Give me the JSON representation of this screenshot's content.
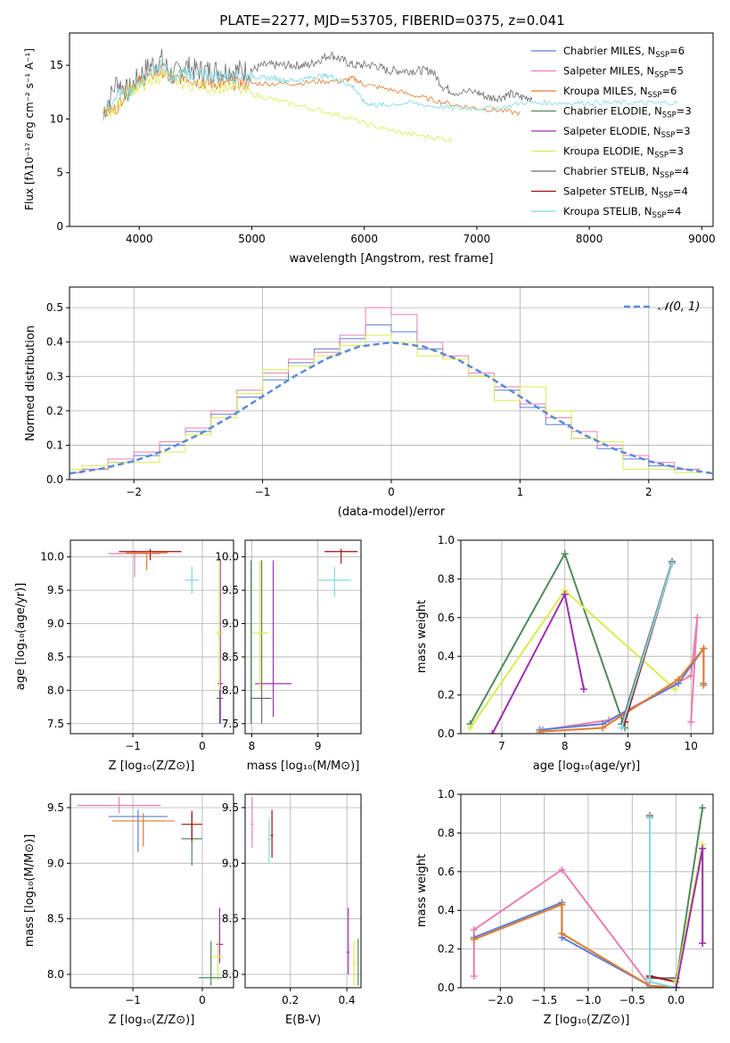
{
  "figure_title": "PLATE=2277, MJD=53705, FIBERID=0375, z=0.041",
  "colors": {
    "Chabrier MILES": "#5b7fd6",
    "Salpeter MILES": "#e97fb3",
    "Kroupa MILES": "#e07b2d",
    "Chabrier ELODIE": "#4f8a5b",
    "Salpeter ELODIE": "#9b30b0",
    "Kroupa ELODIE": "#d9ec4f",
    "Chabrier STELIB": "#6e6e6e",
    "Salpeter STELIB": "#a01010",
    "Kroupa STELIB": "#7fd8e0"
  },
  "chart_data": [
    {
      "id": "spectrum",
      "type": "line",
      "title": "PLATE=2277, MJD=53705, FIBERID=0375, z=0.041",
      "xlabel": "wavelength [Angstrom, rest frame]",
      "ylabel": "Flux [fλ10⁻¹⁷ erg cm⁻² s⁻¹ A⁻¹]",
      "xlim": [
        3380,
        9100
      ],
      "ylim": [
        0,
        18
      ],
      "xticks": [
        4000,
        5000,
        6000,
        7000,
        8000,
        9000
      ],
      "yticks": [
        0,
        5,
        10,
        15
      ],
      "grid": false,
      "legend_position": "upper right",
      "legend": [
        "Chabrier MILES, N_SSP=6",
        "Salpeter MILES, N_SSP=5",
        "Kroupa MILES, N_SSP=6",
        "Chabrier ELODIE, N_SSP=3",
        "Salpeter ELODIE, N_SSP=3",
        "Kroupa ELODIE, N_SSP=3",
        "Chabrier STELIB, N_SSP=4",
        "Salpeter STELIB, N_SSP=4",
        "Kroupa STELIB, N_SSP=4"
      ],
      "series": [
        {
          "name": "Chabrier STELIB, N_SSP=4",
          "x": [
            3680,
            3800,
            3900,
            4000,
            4100,
            4200,
            4300,
            4400,
            4500,
            4600,
            4700,
            4800,
            4900,
            5000,
            5100,
            5200,
            5300,
            5400,
            5500,
            5600,
            5700,
            5800,
            5900,
            6000,
            6100,
            6200,
            6300,
            6400,
            6500,
            6600,
            6700,
            6800,
            7000,
            7100,
            7200,
            7300,
            7400,
            7500
          ],
          "y": [
            10.5,
            13.5,
            12.5,
            14,
            15,
            15.5,
            14,
            15,
            14.5,
            14.5,
            14.5,
            14.5,
            14.5,
            14.5,
            15,
            15,
            15,
            15,
            15,
            15.5,
            16,
            15.5,
            15,
            15,
            15,
            14.5,
            14.5,
            14.5,
            14.5,
            14.5,
            13,
            12.5,
            12.5,
            12,
            12,
            12.3,
            12,
            12
          ]
        },
        {
          "name": "Kroupa MILES, N_SSP=6",
          "x": [
            3680,
            3800,
            3900,
            4000,
            4100,
            4200,
            4300,
            4400,
            4500,
            4600,
            4700,
            4800,
            4900,
            5000,
            5200,
            5400,
            5600,
            5800,
            5900,
            6000,
            6200,
            6400,
            6600,
            6800,
            7000,
            7200,
            7400
          ],
          "y": [
            10.5,
            11,
            13,
            13.5,
            14,
            14.5,
            13.5,
            14,
            13.5,
            13.3,
            13.3,
            13.3,
            13.3,
            13.3,
            13.3,
            13.3,
            13.5,
            13.5,
            13.8,
            13.2,
            12.8,
            12.3,
            11.8,
            11.3,
            11,
            10.8,
            10.5
          ]
        },
        {
          "name": "Kroupa ELODIE, N_SSP=3",
          "x": [
            3700,
            3800,
            3900,
            4000,
            4100,
            4200,
            4400,
            4600,
            4800,
            5000,
            5200,
            5400,
            5600,
            5800,
            6000,
            6200,
            6400,
            6600,
            6800
          ],
          "y": [
            10.5,
            11,
            12.5,
            13,
            13.5,
            14,
            13.3,
            13,
            13,
            12.3,
            11.8,
            11.3,
            10.8,
            10.3,
            9.6,
            9,
            8.6,
            8.3,
            8
          ]
        },
        {
          "name": "Kroupa STELIB, N_SSP=4",
          "x": [
            3680,
            3800,
            3900,
            4000,
            4100,
            4200,
            4300,
            4400,
            4500,
            4600,
            4700,
            4800,
            4900,
            5000,
            5100,
            5200,
            5300,
            5400,
            5500,
            5600,
            5700,
            5800,
            5900,
            6000,
            6100,
            6200,
            6400,
            6600,
            6800,
            7000,
            7200,
            7400,
            7600,
            7800,
            8000,
            8200,
            8400,
            8600,
            8800
          ],
          "y": [
            10.5,
            12.5,
            12,
            13.5,
            14.5,
            15,
            13.5,
            14.5,
            14,
            14,
            14,
            14,
            14,
            14,
            13.8,
            13.8,
            13.6,
            13.6,
            13.8,
            14,
            14,
            13.5,
            13,
            11.5,
            11.3,
            11.3,
            11.5,
            11.2,
            11,
            11,
            11,
            11.5,
            11.5,
            11.5,
            11.5,
            11.5,
            11.5,
            11.5,
            11.5
          ]
        }
      ]
    },
    {
      "id": "residuals",
      "type": "line",
      "xlabel": "(data-model)/error",
      "ylabel": "Normed distribution",
      "xlim": [
        -2.5,
        2.5
      ],
      "ylim": [
        0,
        0.56
      ],
      "xticks": [
        -2,
        -1,
        0,
        1,
        2
      ],
      "yticks": [
        0.0,
        0.1,
        0.2,
        0.3,
        0.4,
        0.5
      ],
      "grid": true,
      "legend_position": "upper right",
      "legend": [
        "𝒩(0, 1)"
      ],
      "series": [
        {
          "name": "𝒩(0, 1)",
          "x": [
            -2.5,
            -2.25,
            -2.0,
            -1.75,
            -1.5,
            -1.25,
            -1.0,
            -0.75,
            -0.5,
            -0.25,
            0.0,
            0.25,
            0.5,
            0.75,
            1.0,
            1.25,
            1.5,
            1.75,
            2.0,
            2.25,
            2.5
          ],
          "y": [
            0.018,
            0.032,
            0.054,
            0.086,
            0.13,
            0.183,
            0.242,
            0.301,
            0.352,
            0.387,
            0.399,
            0.387,
            0.352,
            0.301,
            0.242,
            0.183,
            0.13,
            0.086,
            0.054,
            0.032,
            0.018
          ]
        },
        {
          "name": "Chabrier MILES, N_SSP=6",
          "x": [
            -2.5,
            -2.3,
            -2.1,
            -1.9,
            -1.7,
            -1.5,
            -1.3,
            -1.1,
            -0.9,
            -0.7,
            -0.5,
            -0.3,
            -0.1,
            0.1,
            0.3,
            0.5,
            0.7,
            0.9,
            1.1,
            1.3,
            1.5,
            1.7,
            1.9,
            2.1,
            2.3
          ],
          "y": [
            0.02,
            0.03,
            0.05,
            0.07,
            0.1,
            0.14,
            0.19,
            0.24,
            0.29,
            0.34,
            0.38,
            0.41,
            0.45,
            0.43,
            0.38,
            0.35,
            0.3,
            0.26,
            0.21,
            0.16,
            0.12,
            0.09,
            0.06,
            0.04,
            0.03
          ]
        },
        {
          "name": "Salpeter MILES, N_SSP=5",
          "x": [
            -2.5,
            -2.3,
            -2.1,
            -1.9,
            -1.7,
            -1.5,
            -1.3,
            -1.1,
            -0.9,
            -0.7,
            -0.5,
            -0.3,
            -0.1,
            0.1,
            0.3,
            0.5,
            0.7,
            0.9,
            1.1,
            1.3,
            1.5,
            1.7,
            1.9,
            2.1,
            2.3
          ],
          "y": [
            0.02,
            0.03,
            0.06,
            0.08,
            0.11,
            0.15,
            0.2,
            0.26,
            0.31,
            0.35,
            0.37,
            0.42,
            0.5,
            0.48,
            0.4,
            0.36,
            0.31,
            0.27,
            0.22,
            0.18,
            0.14,
            0.1,
            0.07,
            0.05,
            0.03
          ]
        },
        {
          "name": "Kroupa ELODIE, N_SSP=3",
          "x": [
            -2.5,
            -2.3,
            -2.1,
            -1.9,
            -1.7,
            -1.5,
            -1.3,
            -1.1,
            -0.9,
            -0.7,
            -0.5,
            -0.3,
            -0.1,
            0.1,
            0.3,
            0.5,
            0.7,
            0.9,
            1.1,
            1.3,
            1.5,
            1.7,
            1.9,
            2.1,
            2.3
          ],
          "y": [
            0.03,
            0.04,
            0.05,
            0.05,
            0.08,
            0.13,
            0.18,
            0.25,
            0.32,
            0.33,
            0.36,
            0.39,
            0.42,
            0.4,
            0.36,
            0.35,
            0.3,
            0.23,
            0.27,
            0.2,
            0.12,
            0.11,
            0.03,
            0.03,
            0.02
          ]
        }
      ]
    },
    {
      "id": "age_vs_z",
      "type": "scatter",
      "xlabel": "Z [log₁₀(Z/Z⊙)]",
      "ylabel": "age  [log₁₀(age/yr)]",
      "xlim": [
        -1.9,
        0.45
      ],
      "ylim": [
        7.35,
        10.25
      ],
      "xticks": [
        -1,
        0
      ],
      "yticks": [
        7.5,
        8.0,
        8.5,
        9.0,
        9.5,
        10.0
      ],
      "grid": true
    },
    {
      "id": "age_vs_mass",
      "type": "scatter",
      "xlabel": "mass [log₁₀(M/M⊙)]",
      "ylabel": "",
      "xlim": [
        7.9,
        9.65
      ],
      "ylim": [
        7.35,
        10.25
      ],
      "xticks": [
        8,
        9
      ],
      "yticks": [
        7.5,
        8.0,
        8.5,
        9.0,
        9.5,
        10.0
      ],
      "grid": true
    },
    {
      "id": "weight_vs_age",
      "type": "line",
      "xlabel": "age  [log₁₀(age/yr)]",
      "ylabel": "mass weight",
      "xlim": [
        6.35,
        10.35
      ],
      "ylim": [
        0,
        1
      ],
      "xticks": [
        7,
        8,
        9,
        10
      ],
      "yticks": [
        0.0,
        0.2,
        0.4,
        0.6,
        0.8,
        1.0
      ],
      "grid": true,
      "series": [
        {
          "name": "Chabrier ELODIE, N_SSP=3",
          "x": [
            6.5,
            8.0,
            8.95
          ],
          "y": [
            0.05,
            0.93,
            0.03
          ]
        },
        {
          "name": "Kroupa ELODIE, N_SSP=3",
          "x": [
            6.5,
            8.0,
            9.75
          ],
          "y": [
            0.03,
            0.74,
            0.23
          ]
        },
        {
          "name": "Salpeter ELODIE, N_SSP=3",
          "x": [
            6.85,
            8.0,
            8.3
          ],
          "y": [
            0.0,
            0.72,
            0.23
          ]
        },
        {
          "name": "Salpeter MILES, N_SSP=5",
          "x": [
            7.65,
            8.7,
            10.0,
            10.1,
            10.0
          ],
          "y": [
            0.02,
            0.07,
            0.3,
            0.6,
            0.06
          ]
        },
        {
          "name": "Chabrier MILES, N_SSP=6",
          "x": [
            7.6,
            8.6,
            9.8,
            10.2,
            10.2
          ],
          "y": [
            0.02,
            0.05,
            0.26,
            0.44,
            0.26
          ]
        },
        {
          "name": "Kroupa MILES, N_SSP=6",
          "x": [
            7.6,
            8.6,
            9.8,
            10.2,
            10.2
          ],
          "y": [
            0.01,
            0.03,
            0.28,
            0.44,
            0.25
          ]
        },
        {
          "name": "Chabrier STELIB, N_SSP=4",
          "x": [
            8.9,
            9.7
          ],
          "y": [
            0.05,
            0.89
          ]
        },
        {
          "name": "Salpeter STELIB, N_SSP=4",
          "x": [
            8.95,
            9.7
          ],
          "y": [
            0.06,
            0.88
          ]
        },
        {
          "name": "Kroupa STELIB, N_SSP=4",
          "x": [
            8.9,
            9.7
          ],
          "y": [
            0.03,
            0.88
          ]
        }
      ]
    },
    {
      "id": "mass_vs_z",
      "type": "scatter",
      "xlabel": "Z [log₁₀(Z/Z⊙)]",
      "ylabel": "mass [log₁₀(M/M⊙)]",
      "xlim": [
        -1.9,
        0.45
      ],
      "ylim": [
        7.88,
        9.62
      ],
      "xticks": [
        -1,
        0
      ],
      "yticks": [
        8.0,
        8.5,
        9.0,
        9.5
      ],
      "grid": true
    },
    {
      "id": "mass_vs_ebv",
      "type": "scatter",
      "xlabel": "E(B-V)",
      "ylabel": "",
      "xlim": [
        0.04,
        0.45
      ],
      "ylim": [
        7.88,
        9.62
      ],
      "xticks": [
        0.2,
        0.4
      ],
      "yticks": [
        8.0,
        8.5,
        9.0,
        9.5
      ],
      "grid": true
    },
    {
      "id": "weight_vs_z",
      "type": "line",
      "xlabel": "Z [log₁₀(Z/Z⊙)]",
      "ylabel": "mass weight",
      "xlim": [
        -2.45,
        0.42
      ],
      "ylim": [
        0,
        1
      ],
      "xticks": [
        -2.0,
        -1.5,
        -1.0,
        -0.5,
        0.0
      ],
      "yticks": [
        0.0,
        0.2,
        0.4,
        0.6,
        0.8,
        1.0
      ],
      "grid": true,
      "series": [
        {
          "name": "Salpeter MILES, N_SSP=5",
          "x": [
            -2.3,
            -2.3,
            -1.3,
            -0.3,
            0.0
          ],
          "y": [
            0.06,
            0.3,
            0.61,
            0.01,
            0.0
          ]
        },
        {
          "name": "Chabrier MILES, N_SSP=6",
          "x": [
            -2.3,
            -1.3,
            -1.3,
            -0.3,
            0.0
          ],
          "y": [
            0.26,
            0.44,
            0.26,
            0.01,
            0.0
          ]
        },
        {
          "name": "Kroupa MILES, N_SSP=6",
          "x": [
            -2.3,
            -1.3,
            -1.3,
            -0.3,
            0.0
          ],
          "y": [
            0.25,
            0.43,
            0.28,
            0.01,
            0.0
          ]
        },
        {
          "name": "Chabrier STELIB, N_SSP=4",
          "x": [
            -0.3,
            -0.3,
            0.0,
            0.0
          ],
          "y": [
            0.89,
            0.05,
            0.05,
            0.0
          ]
        },
        {
          "name": "Salpeter STELIB, N_SSP=4",
          "x": [
            -0.3,
            -0.3,
            0.0,
            0.0
          ],
          "y": [
            0.88,
            0.06,
            0.03,
            0.0
          ]
        },
        {
          "name": "Kroupa STELIB, N_SSP=4",
          "x": [
            -0.3,
            -0.3,
            0.0
          ],
          "y": [
            0.88,
            0.03,
            0.0
          ]
        },
        {
          "name": "Chabrier ELODIE, N_SSP=3",
          "x": [
            0.0,
            0.3
          ],
          "y": [
            0.03,
            0.93
          ]
        },
        {
          "name": "Kroupa ELODIE, N_SSP=3",
          "x": [
            0.0,
            0.3,
            0.3
          ],
          "y": [
            0.03,
            0.74,
            0.23
          ]
        },
        {
          "name": "Salpeter ELODIE, N_SSP=3",
          "x": [
            0.0,
            0.3,
            0.3
          ],
          "y": [
            0.0,
            0.72,
            0.23
          ]
        }
      ]
    }
  ]
}
